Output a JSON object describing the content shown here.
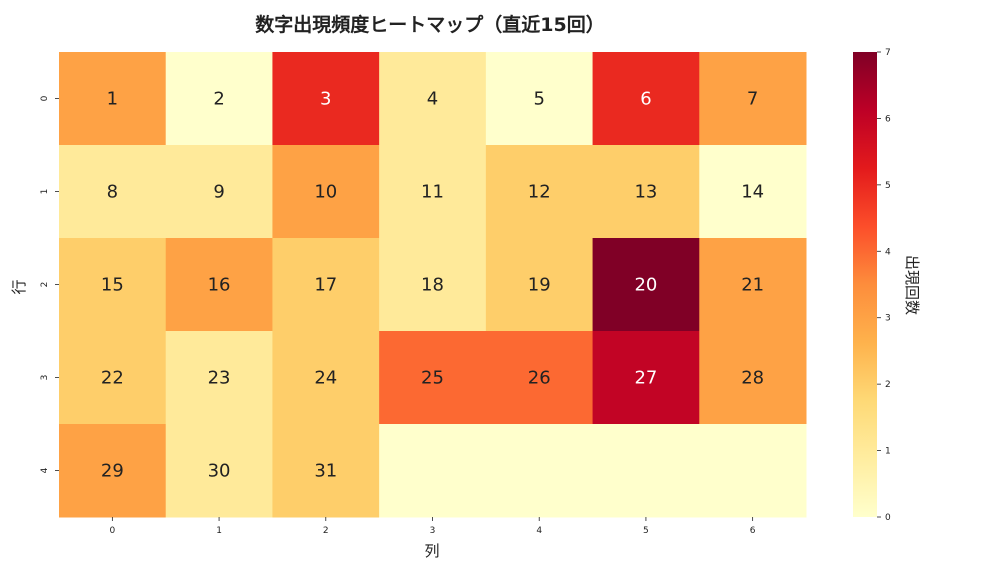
{
  "chart_data": {
    "type": "heatmap",
    "title": "数字出現頻度ヒートマップ（直近15回）",
    "xlabel": "列",
    "ylabel": "行",
    "x_ticks": [
      "0",
      "1",
      "2",
      "3",
      "4",
      "5",
      "6"
    ],
    "y_ticks": [
      "0",
      "1",
      "2",
      "3",
      "4"
    ],
    "colorbar_label": "出現回数",
    "colorbar_ticks": [
      "0",
      "1",
      "2",
      "3",
      "4",
      "5",
      "6",
      "7"
    ],
    "colormap": "YlOrRd",
    "vmin": 0,
    "vmax": 7,
    "cells": [
      [
        {
          "number": "1",
          "count": 3
        },
        {
          "number": "2",
          "count": 0
        },
        {
          "number": "3",
          "count": 5
        },
        {
          "number": "4",
          "count": 1
        },
        {
          "number": "5",
          "count": 0
        },
        {
          "number": "6",
          "count": 5
        },
        {
          "number": "7",
          "count": 3
        }
      ],
      [
        {
          "number": "8",
          "count": 1
        },
        {
          "number": "9",
          "count": 1
        },
        {
          "number": "10",
          "count": 3
        },
        {
          "number": "11",
          "count": 1
        },
        {
          "number": "12",
          "count": 2
        },
        {
          "number": "13",
          "count": 2
        },
        {
          "number": "14",
          "count": 0
        }
      ],
      [
        {
          "number": "15",
          "count": 2
        },
        {
          "number": "16",
          "count": 3
        },
        {
          "number": "17",
          "count": 2
        },
        {
          "number": "18",
          "count": 1
        },
        {
          "number": "19",
          "count": 2
        },
        {
          "number": "20",
          "count": 7
        },
        {
          "number": "21",
          "count": 3
        }
      ],
      [
        {
          "number": "22",
          "count": 2
        },
        {
          "number": "23",
          "count": 1
        },
        {
          "number": "24",
          "count": 2
        },
        {
          "number": "25",
          "count": 4
        },
        {
          "number": "26",
          "count": 4
        },
        {
          "number": "27",
          "count": 6
        },
        {
          "number": "28",
          "count": 3
        }
      ],
      [
        {
          "number": "29",
          "count": 3
        },
        {
          "number": "30",
          "count": 1
        },
        {
          "number": "31",
          "count": 2
        },
        {
          "number": "",
          "count": 0
        },
        {
          "number": "",
          "count": 0
        },
        {
          "number": "",
          "count": 0
        },
        {
          "number": "",
          "count": 0
        }
      ]
    ]
  }
}
